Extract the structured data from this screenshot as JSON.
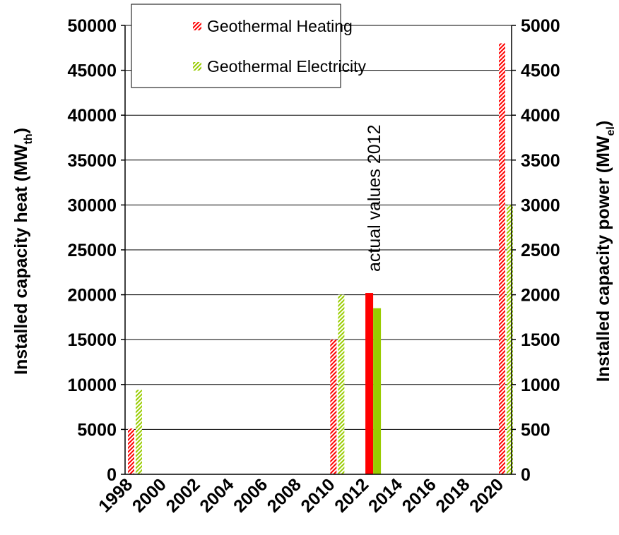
{
  "chart_data": {
    "type": "bar",
    "x": [
      1998,
      2000,
      2002,
      2004,
      2006,
      2008,
      2010,
      2012,
      2014,
      2016,
      2018,
      2020
    ],
    "y_left": {
      "label_main": "Installed capacity heat (MW",
      "label_sub": "th",
      "label_end": ")",
      "min": 0,
      "max": 50000,
      "ticks": [
        "0",
        "5000",
        "10000",
        "15000",
        "20000",
        "25000",
        "30000",
        "35000",
        "40000",
        "45000",
        "50000"
      ]
    },
    "y_right": {
      "label_main": "Installed capacity power (MW",
      "label_sub": "el",
      "label_end": ")",
      "min": 0,
      "max": 5000,
      "ticks": [
        "0",
        "500",
        "1000",
        "1500",
        "2000",
        "2500",
        "3000",
        "3500",
        "4000",
        "4500",
        "5000"
      ]
    },
    "x_ticks": [
      "1998",
      "2000",
      "2002",
      "2004",
      "2006",
      "2008",
      "2010",
      "2012",
      "2014",
      "2016",
      "2018",
      "2020"
    ],
    "grid": true,
    "legend_position": "top-left",
    "series": [
      {
        "name": "Geothermal Heating",
        "axis": "left",
        "color": "#ff0000",
        "points": [
          {
            "x": 1998,
            "value": 5100,
            "style": "hatched"
          },
          {
            "x": 2010,
            "value": 15000,
            "style": "hatched"
          },
          {
            "x": 2012,
            "value": 20200,
            "style": "solid"
          },
          {
            "x": 2020,
            "value": 48000,
            "style": "hatched"
          }
        ]
      },
      {
        "name": "Geothermal Electricity",
        "axis": "right",
        "color": "#99cc00",
        "points": [
          {
            "x": 1998,
            "value": 940,
            "style": "hatched"
          },
          {
            "x": 2010,
            "value": 2000,
            "style": "hatched"
          },
          {
            "x": 2012,
            "value": 1850,
            "style": "solid"
          },
          {
            "x": 2020,
            "value": 3000,
            "style": "hatched"
          }
        ]
      }
    ],
    "annotations": [
      {
        "text": "actual values 2012",
        "x": 2012
      }
    ]
  }
}
